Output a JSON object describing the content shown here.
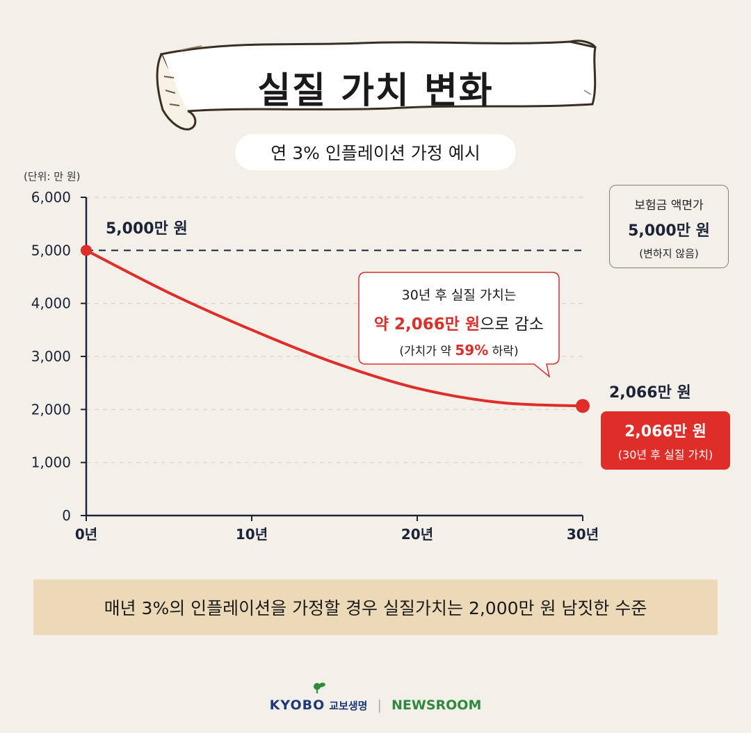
{
  "title": "실질 가치 변화",
  "subtitle": "연 3% 인플레이션 가정 예시",
  "unit_label": "(단위: 만 원)",
  "face_value_box": {
    "line1": "보험금 액면가",
    "line2": "5,000만 원",
    "line3": "(변하지 않음)"
  },
  "callout": {
    "line1": "30년 후 실질 가치는",
    "line2_highlight": "약 2,066만 원",
    "line2_rest": "으로 감소",
    "line3_pre": "(가치가 약 ",
    "line3_highlight": "59%",
    "line3_post": " 하락)"
  },
  "start_label": "5,000만 원",
  "end_label": "2,066만 원",
  "end_box": {
    "line1": "2,066만 원",
    "line2": "(30년 후 실질 가치)"
  },
  "note": "매년 3%의 인플레이션을 가정할 경우 실질가치는 2,000만 원 남짓한 수준",
  "footer": {
    "brand": "KYOBO",
    "brand_kor": "교보생명",
    "divider": "|",
    "newsroom": "NEWSROOM"
  },
  "colors": {
    "background": "#f3efe9",
    "line": "#df2e2a",
    "axis": "#1c2338",
    "note_bg": "#ecd9b7",
    "brand_blue": "#1f3a7a",
    "brand_green": "#2d8a3e"
  },
  "chart_data": {
    "type": "line",
    "ylim": [
      0,
      6000
    ],
    "xlim": [
      0,
      30
    ],
    "yticks": [
      0,
      1000,
      2000,
      3000,
      4000,
      5000,
      6000
    ],
    "ytick_labels": [
      "0",
      "1,000",
      "2,000",
      "3,000",
      "4,000",
      "5,000",
      "6,000"
    ],
    "xticks": [
      0,
      10,
      20,
      30
    ],
    "xtick_labels": [
      "0년",
      "10년",
      "20년",
      "30년"
    ],
    "grid": true,
    "reference_line": {
      "y": 5000,
      "style": "dashed"
    },
    "series": [
      {
        "x": [
          0,
          5,
          10,
          15,
          20,
          25,
          30
        ],
        "values": [
          5000,
          4200,
          3500,
          2880,
          2400,
          2130,
          2066
        ]
      }
    ]
  }
}
